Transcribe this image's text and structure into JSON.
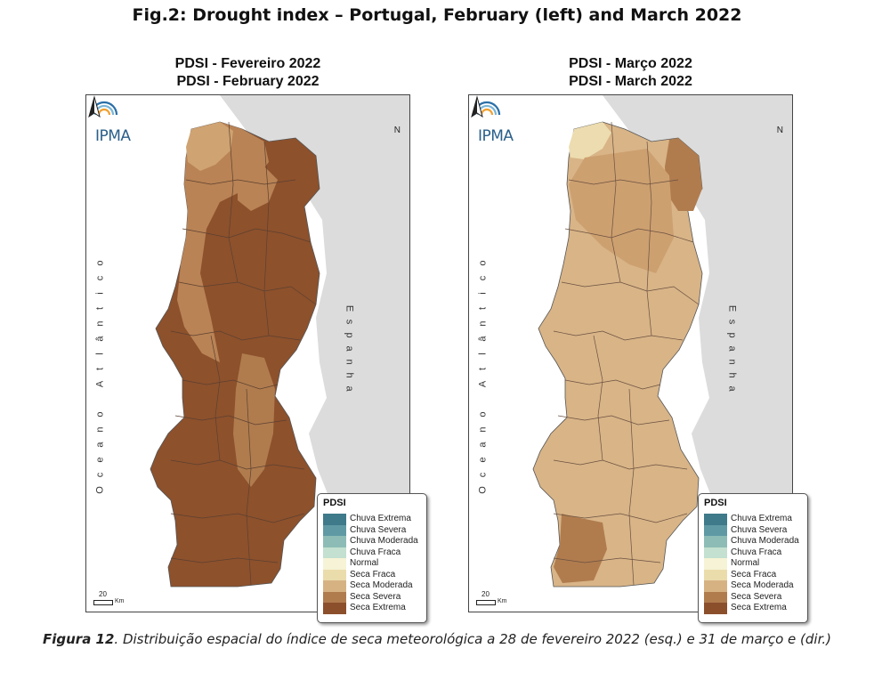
{
  "figure_title": "Fig.2: Drought index – Portugal, February (left) and March 2022",
  "maps": [
    {
      "title_pt": "PDSI - Fevereiro 2022",
      "title_en": "PDSI - February 2022",
      "dominant_class": "Seca Extrema",
      "secondary_class": "Seca Severa"
    },
    {
      "title_pt": "PDSI - Março 2022",
      "title_en": "PDSI - March 2022",
      "dominant_class": "Seca Moderada",
      "secondary_class": "Seca Severa"
    }
  ],
  "logo_text": "IPMA",
  "north_label": "N",
  "ocean_label": "Oceano Atlântico",
  "spain_label": "Espanha",
  "scale_value": "20",
  "scale_unit": "Km",
  "legend": {
    "title": "PDSI",
    "classes": [
      {
        "label": "Chuva Extrema",
        "color": "#3e7a8a"
      },
      {
        "label": "Chuva Severa",
        "color": "#5f9aa4"
      },
      {
        "label": "Chuva Moderada",
        "color": "#8dbcb6"
      },
      {
        "label": "Chuva Fraca",
        "color": "#c3e0d0"
      },
      {
        "label": "Normal",
        "color": "#f6f3d6"
      },
      {
        "label": "Seca Fraca",
        "color": "#ebdcac"
      },
      {
        "label": "Seca Moderada",
        "color": "#d6b283"
      },
      {
        "label": "Seca Severa",
        "color": "#b07c4e"
      },
      {
        "label": "Seca Extrema",
        "color": "#8b4f2c"
      }
    ]
  },
  "caption_label": "Figura 12",
  "caption_text": ". Distribuição espacial do índice de seca meteorológica a 28 de fevereiro 2022 (esq.) e 31 de março e (dir.)"
}
